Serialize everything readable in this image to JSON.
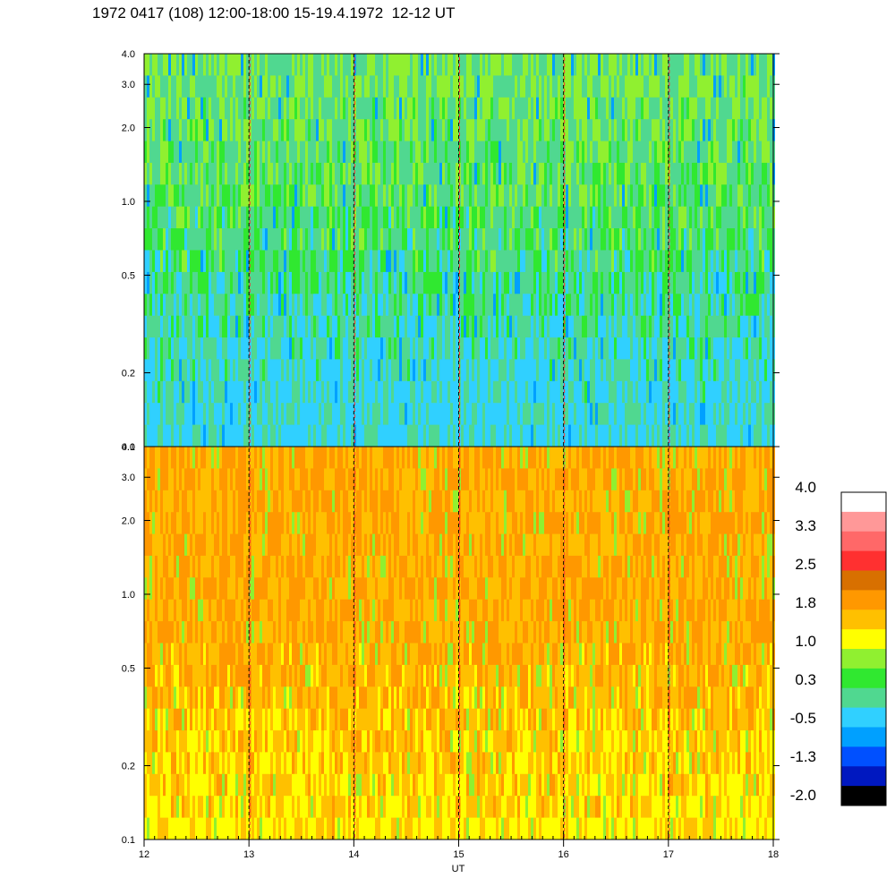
{
  "title": "1972 0417 (108) 12:00-18:00 15-19.4.1972  12-12 UT",
  "chart_data": {
    "type": "heatmap",
    "title": "1972 0417 (108) 12:00-18:00 15-19.4.1972  12-12 UT",
    "xlabel": "UT",
    "x_range": [
      12,
      18
    ],
    "x_ticks": [
      12,
      13,
      14,
      15,
      16,
      17,
      18
    ],
    "x_tick_labels": [
      "12",
      "13",
      "14",
      "15",
      "16",
      "17",
      "18"
    ],
    "vertical_marker_lines": [
      13,
      14,
      15,
      16,
      17
    ],
    "panels": [
      {
        "name": "upper-panel",
        "y_scale": "log",
        "y_range": [
          0.1,
          4.0
        ],
        "y_ticks": [
          0.1,
          0.2,
          0.5,
          1.0,
          2.0,
          3.0,
          4.0
        ],
        "y_tick_labels": [
          "0.1",
          "0.2",
          "0.5",
          "1.0",
          "2.0",
          "3.0",
          "4.0"
        ],
        "typical_level_range": [
          -1.3,
          1.0
        ],
        "dominant_colors": [
          "#2ed0ff",
          "#50d890",
          "#30e830",
          "#90f030"
        ]
      },
      {
        "name": "lower-panel",
        "y_scale": "log",
        "y_range": [
          0.1,
          4.0
        ],
        "y_ticks": [
          0.1,
          0.2,
          0.5,
          1.0,
          2.0,
          3.0,
          4.0
        ],
        "y_tick_labels": [
          "0.1",
          "0.2",
          "0.5",
          "1.0",
          "2.0",
          "3.0",
          "4.0"
        ],
        "typical_level_range": [
          0.3,
          2.5
        ],
        "dominant_colors": [
          "#ffff00",
          "#ffc000",
          "#ff9800",
          "#90f030"
        ]
      }
    ],
    "colorbar": {
      "range": [
        -2.0,
        4.0
      ],
      "labels": [
        "4.0",
        "3.3",
        "2.5",
        "1.8",
        "1.0",
        "0.3",
        "-0.5",
        "-1.3",
        "-2.0"
      ],
      "colors_top_to_bottom": [
        "#ffffff",
        "#ff9898",
        "#ff6868",
        "#ff3030",
        "#d87000",
        "#ff9800",
        "#ffc000",
        "#ffff00",
        "#90f030",
        "#30e830",
        "#50d890",
        "#30d0ff",
        "#00a0ff",
        "#0050ff",
        "#0018c0",
        "#000000"
      ]
    },
    "grid": false
  }
}
